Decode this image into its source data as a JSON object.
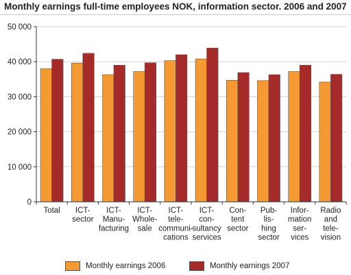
{
  "title": "Monthly earnings full-time employees NOK, information sector. 2006 and 2007",
  "chart_data": {
    "type": "bar",
    "title": "Monthly earnings full-time employees NOK, information sector. 2006 and 2007",
    "xlabel": "",
    "ylabel": "",
    "ylim": [
      0,
      50000
    ],
    "yticks": [
      0,
      10000,
      20000,
      30000,
      40000,
      50000
    ],
    "ytick_labels": [
      "0",
      "10 000",
      "20 000",
      "30 000",
      "40 000",
      "50 000"
    ],
    "grid": true,
    "legend_position": "bottom",
    "categories": [
      [
        "Total"
      ],
      [
        "ICT-",
        "sector"
      ],
      [
        "ICT-",
        "Manu-",
        "facturing"
      ],
      [
        "ICT-",
        "Whole-",
        "sale"
      ],
      [
        "ICT-",
        "tele-",
        "communi-",
        "cations"
      ],
      [
        "ICT-",
        "con-",
        "sultancy",
        "services"
      ],
      [
        "Con-",
        "tent",
        "sector"
      ],
      [
        "Pub-",
        "lis-",
        "hing",
        "sector"
      ],
      [
        "Infor-",
        "mation",
        "ser-",
        "vices"
      ],
      [
        "Radio",
        "and",
        "tele-",
        "vision"
      ]
    ],
    "series": [
      {
        "name": "Monthly earnings 2006",
        "color": "#f59a32",
        "values": [
          38000,
          39600,
          36300,
          37200,
          40300,
          40800,
          34700,
          34600,
          37200,
          34200
        ]
      },
      {
        "name": "Monthly earnings 2007",
        "color": "#a52a2a",
        "values": [
          40700,
          42400,
          39000,
          39700,
          42000,
          43900,
          36900,
          36300,
          39000,
          36400
        ]
      }
    ]
  }
}
